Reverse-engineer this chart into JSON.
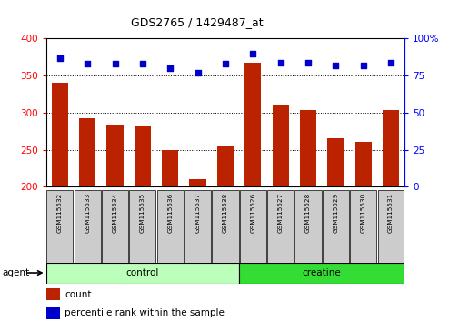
{
  "title": "GDS2765 / 1429487_at",
  "samples": [
    "GSM115532",
    "GSM115533",
    "GSM115534",
    "GSM115535",
    "GSM115536",
    "GSM115537",
    "GSM115538",
    "GSM115526",
    "GSM115527",
    "GSM115528",
    "GSM115529",
    "GSM115530",
    "GSM115531"
  ],
  "counts": [
    340,
    292,
    284,
    281,
    250,
    210,
    256,
    367,
    311,
    303,
    266,
    261,
    304
  ],
  "percentile_ranks": [
    87,
    83,
    83,
    83,
    80,
    77,
    83,
    90,
    84,
    84,
    82,
    82,
    84
  ],
  "control_indices": [
    0,
    1,
    2,
    3,
    4,
    5,
    6
  ],
  "creatine_indices": [
    7,
    8,
    9,
    10,
    11,
    12
  ],
  "ymin": 200,
  "ymax": 400,
  "yticks_left": [
    200,
    250,
    300,
    350,
    400
  ],
  "yticks_right_labels": [
    "0",
    "25",
    "50",
    "75",
    "100%"
  ],
  "bar_color": "#BB2200",
  "dot_color": "#0000CC",
  "control_color": "#BBFFBB",
  "creatine_color": "#33DD33",
  "label_bg_color": "#CCCCCC",
  "bar_width": 0.6,
  "legend_count_label": "count",
  "legend_pct_label": "percentile rank within the sample",
  "agent_label": "agent",
  "control_label": "control",
  "creatine_label": "creatine"
}
